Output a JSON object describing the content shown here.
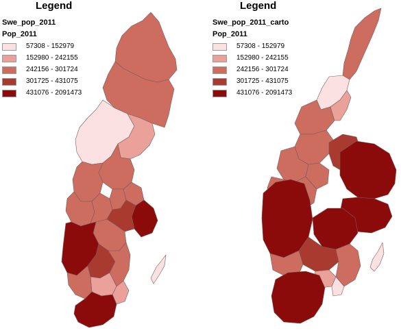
{
  "left_panel": {
    "legend_title": "Legend",
    "layer_name": "Swe_pop_2011",
    "field_name": "Pop_2011"
  },
  "right_panel": {
    "legend_title": "Legend",
    "layer_name": "Swe_pop_2011_carto",
    "field_name": "Pop_2011"
  },
  "classes": [
    {
      "range": "57308 - 152979",
      "color": "#fbe1e1"
    },
    {
      "range": "152980 - 242155",
      "color": "#e9a199"
    },
    {
      "range": "242156 - 301724",
      "color": "#cc6d60"
    },
    {
      "range": "301725 - 431075",
      "color": "#a83a2f"
    },
    {
      "range": "431076 - 2091473",
      "color": "#8b0b0b"
    }
  ]
}
